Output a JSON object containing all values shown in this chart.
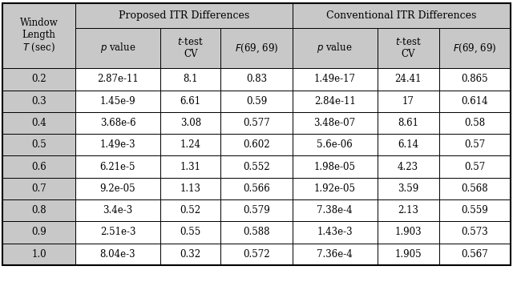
{
  "col_headers_top": [
    "Proposed ITR Differences",
    "Conventional ITR Differences"
  ],
  "col_headers_sub": [
    "$p$ value",
    "$t$-test\nCV",
    "$F$(69, 69)",
    "$p$ value",
    "$t$-test\nCV",
    "$F$(69, 69)"
  ],
  "row_header": "Window\nLength\n$T$ (sec)",
  "rows": [
    [
      "0.2",
      "2.87e-11",
      "8.1",
      "0.83",
      "1.49e-17",
      "24.41",
      "0.865"
    ],
    [
      "0.3",
      "1.45e-9",
      "6.61",
      "0.59",
      "2.84e-11",
      "17",
      "0.614"
    ],
    [
      "0.4",
      "3.68e-6",
      "3.08",
      "0.577",
      "3.48e-07",
      "8.61",
      "0.58"
    ],
    [
      "0.5",
      "1.49e-3",
      "1.24",
      "0.602",
      "5.6e-06",
      "6.14",
      "0.57"
    ],
    [
      "0.6",
      "6.21e-5",
      "1.31",
      "0.552",
      "1.98e-05",
      "4.23",
      "0.57"
    ],
    [
      "0.7",
      "9.2e-05",
      "1.13",
      "0.566",
      "1.92e-05",
      "3.59",
      "0.568"
    ],
    [
      "0.8",
      "3.4e-3",
      "0.52",
      "0.579",
      "7.38e-4",
      "2.13",
      "0.559"
    ],
    [
      "0.9",
      "2.51e-3",
      "0.55",
      "0.588",
      "1.43e-3",
      "1.903",
      "0.573"
    ],
    [
      "1.0",
      "8.04e-3",
      "0.32",
      "0.572",
      "7.36e-4",
      "1.905",
      "0.567"
    ]
  ],
  "bg_gray": "#c8c8c8",
  "bg_white": "#ffffff",
  "border_color": "#000000",
  "fig_bg": "#ffffff",
  "fig_width": 6.4,
  "fig_height": 3.52,
  "dpi": 100
}
